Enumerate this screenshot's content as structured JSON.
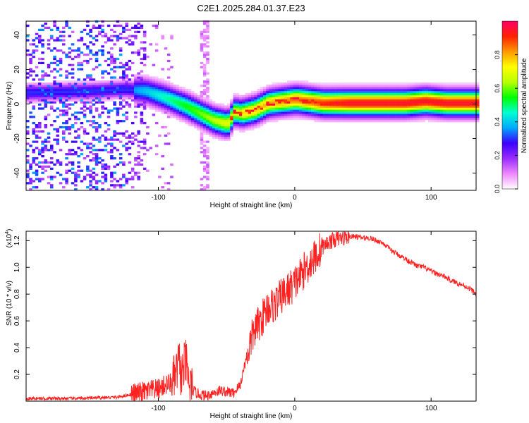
{
  "figure_title": "C2E1.2025.284.01.37.E23",
  "colorbar": {
    "label": "Normalized spectral amplitude",
    "ticks": [
      "0.0",
      "0.2",
      "0.4",
      "0.6",
      "0.8"
    ],
    "tick_values": [
      0.0,
      0.2,
      0.4,
      0.6,
      0.8
    ],
    "range": [
      0,
      1
    ],
    "colors": [
      "#ffffff",
      "#ee88ff",
      "#9a2cff",
      "#3b00ff",
      "#00a8ff",
      "#00ffd0",
      "#00ff00",
      "#b8ff00",
      "#ffff00",
      "#ff9900",
      "#ff2200",
      "#ff0066"
    ]
  },
  "chart_data": [
    {
      "type": "heatmap",
      "title": "C2E1.2025.284.01.37.E23",
      "xlabel": "Height of straight line (km)",
      "ylabel": "Frequency (Hz)",
      "xlim": [
        -197,
        133
      ],
      "ylim": [
        -50,
        48
      ],
      "xticks": [
        -100,
        0,
        100
      ],
      "xtick_labels": [
        "-100",
        "0",
        "100"
      ],
      "yticks": [
        -40,
        -20,
        0,
        20,
        40
      ],
      "ytick_labels": [
        "-40",
        "-20",
        "0",
        "20",
        "40"
      ],
      "ridge": {
        "x": [
          -197,
          -150,
          -125,
          -110,
          -95,
          -80,
          -70,
          -60,
          -50,
          -45,
          -40,
          -30,
          -20,
          -10,
          0,
          10,
          20,
          40,
          60,
          80,
          95,
          110,
          133
        ],
        "y": [
          6,
          7,
          8,
          7,
          3,
          -2,
          -6,
          -10,
          -12,
          -5,
          -6,
          -4,
          0,
          1,
          2,
          1,
          0,
          0,
          0,
          0,
          1,
          0,
          0
        ]
      }
    },
    {
      "type": "line",
      "xlabel": "Height of straight line (km)",
      "ylabel": "SNR (10 * v/v)",
      "y_exponent_label": "(x10",
      "y_exponent": "4",
      "xlim": [
        -197,
        133
      ],
      "ylim": [
        0,
        1.27
      ],
      "xticks": [
        -100,
        0,
        100
      ],
      "xtick_labels": [
        "-100",
        "0",
        "100"
      ],
      "yticks": [
        0.2,
        0.4,
        0.6,
        0.8,
        1.0,
        1.2
      ],
      "ytick_labels": [
        "0.2",
        "0.4",
        "0.6",
        "0.8",
        "1.0",
        "1.2"
      ],
      "series": [
        {
          "name": "SNR",
          "color": "#ff2020",
          "x": [
            -197,
            -160,
            -130,
            -120,
            -110,
            -100,
            -95,
            -90,
            -87,
            -85,
            -83,
            -80,
            -78,
            -75,
            -70,
            -65,
            -60,
            -55,
            -50,
            -45,
            -40,
            -35,
            -32,
            -30,
            -25,
            -20,
            -15,
            -10,
            -5,
            0,
            5,
            10,
            15,
            20,
            25,
            30,
            35,
            40,
            45,
            50,
            55,
            60,
            65,
            70,
            75,
            80,
            85,
            90,
            95,
            100,
            105,
            110,
            115,
            120,
            125,
            130,
            133
          ],
          "y": [
            0.02,
            0.02,
            0.03,
            0.05,
            0.07,
            0.09,
            0.12,
            0.14,
            0.2,
            0.3,
            0.18,
            0.3,
            0.15,
            0.08,
            0.05,
            0.04,
            0.06,
            0.08,
            0.07,
            0.06,
            0.12,
            0.35,
            0.45,
            0.52,
            0.6,
            0.7,
            0.72,
            0.78,
            0.83,
            0.88,
            0.95,
            1.02,
            1.08,
            1.15,
            1.19,
            1.21,
            1.22,
            1.23,
            1.23,
            1.22,
            1.22,
            1.2,
            1.18,
            1.13,
            1.1,
            1.07,
            1.04,
            1.01,
            1.0,
            0.97,
            0.95,
            0.93,
            0.9,
            0.88,
            0.86,
            0.83,
            0.8
          ]
        }
      ]
    }
  ]
}
